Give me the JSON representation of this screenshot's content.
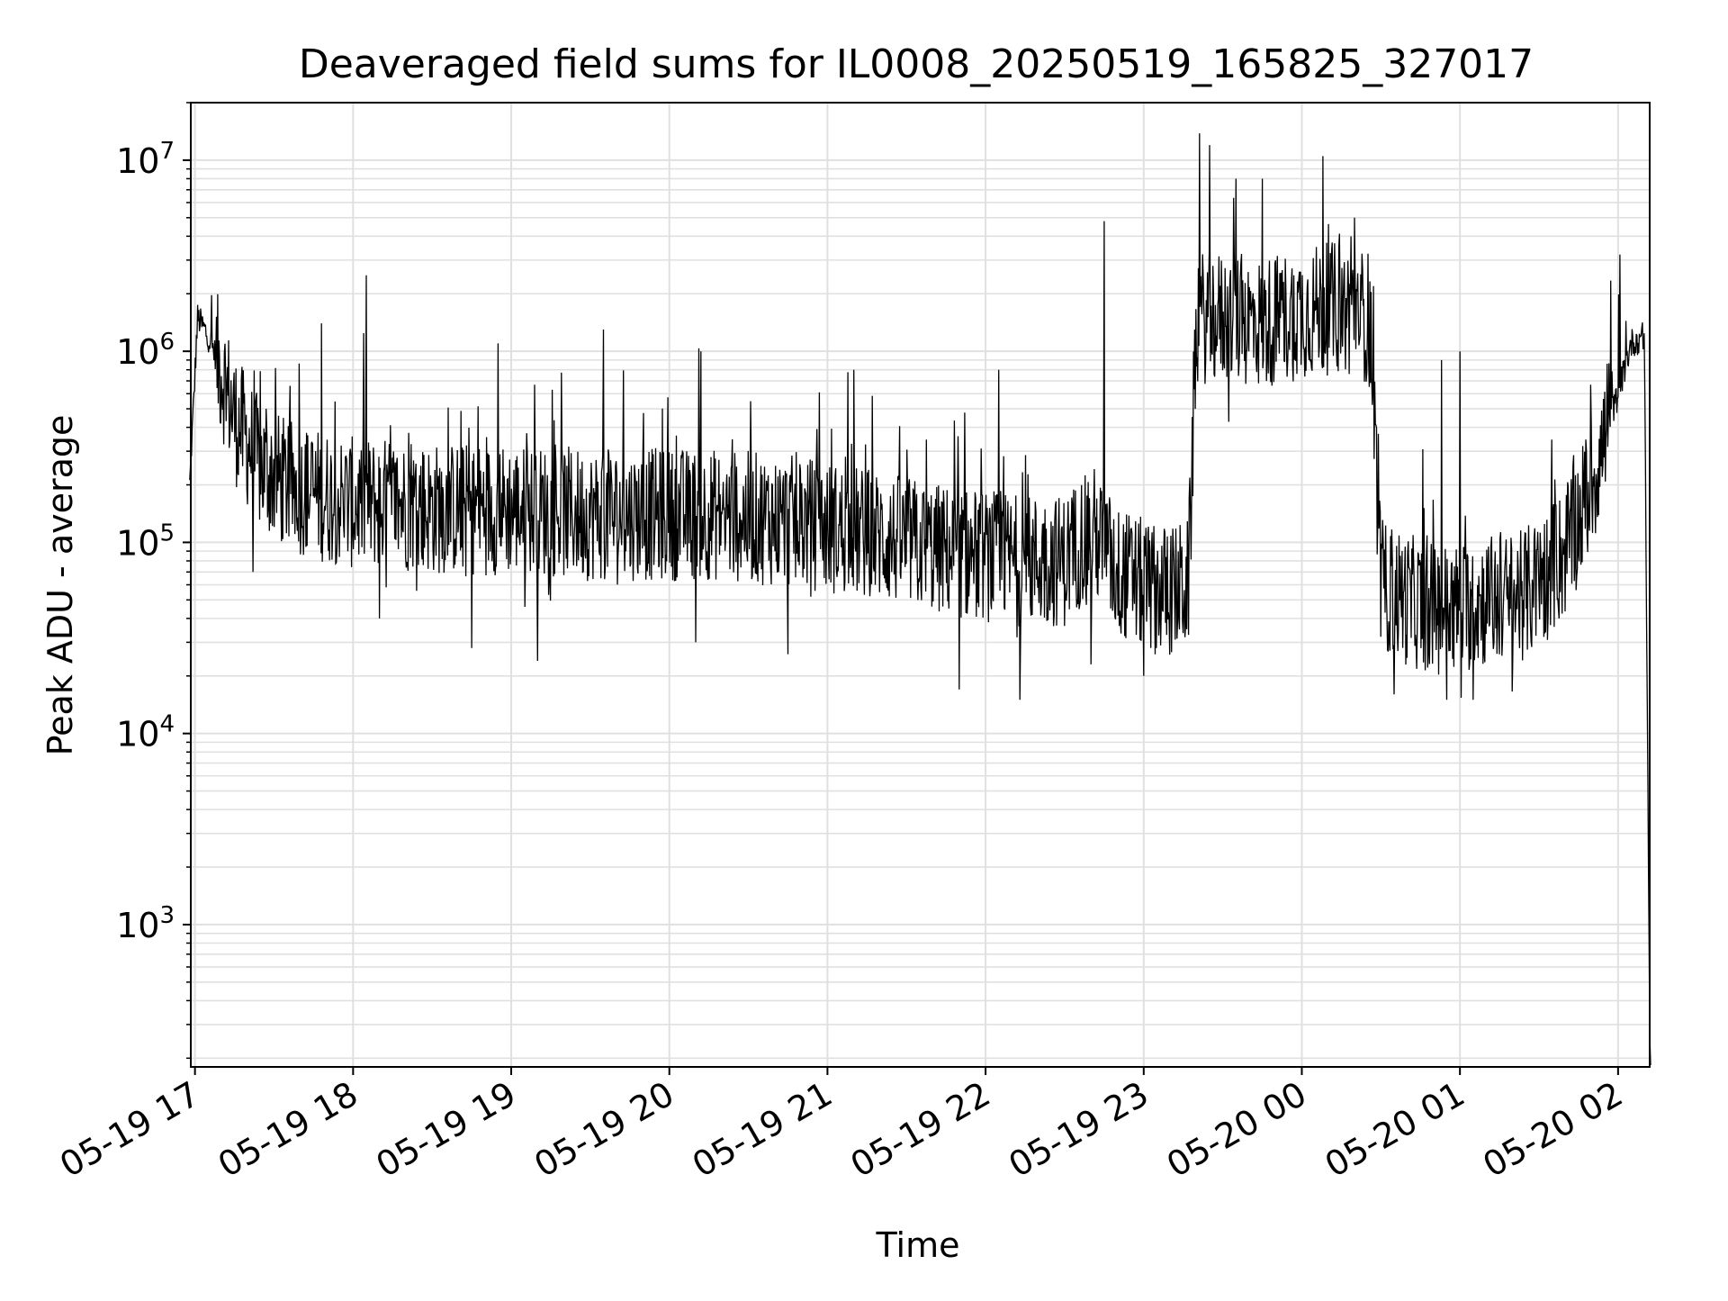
{
  "chart_data": {
    "type": "line",
    "title": "Deaveraged field sums for IL0008_20250519_165825_327017",
    "xlabel": "Time",
    "ylabel": "Peak ADU - average",
    "x_scale": "time",
    "y_scale": "log",
    "xlim": [
      "2025-05-19 16:58:25",
      "2025-05-20 02:12:00"
    ],
    "ylim": [
      180,
      20000000
    ],
    "grid": true,
    "line_color": "#000000",
    "grid_color": "#e0e0e0",
    "x_ticks": [
      {
        "time": "2025-05-19 17:00",
        "label": "05-19 17"
      },
      {
        "time": "2025-05-19 18:00",
        "label": "05-19 18"
      },
      {
        "time": "2025-05-19 19:00",
        "label": "05-19 19"
      },
      {
        "time": "2025-05-19 20:00",
        "label": "05-19 20"
      },
      {
        "time": "2025-05-19 21:00",
        "label": "05-19 21"
      },
      {
        "time": "2025-05-19 22:00",
        "label": "05-19 22"
      },
      {
        "time": "2025-05-19 23:00",
        "label": "05-19 23"
      },
      {
        "time": "2025-05-20 00:00",
        "label": "05-20 00"
      },
      {
        "time": "2025-05-20 01:00",
        "label": "05-20 01"
      },
      {
        "time": "2025-05-20 02:00",
        "label": "05-20 02"
      }
    ],
    "y_ticks": [
      {
        "value": 1000,
        "base": "10",
        "exp": "3"
      },
      {
        "value": 10000,
        "base": "10",
        "exp": "4"
      },
      {
        "value": 100000,
        "base": "10",
        "exp": "5"
      },
      {
        "value": 1000000,
        "base": "10",
        "exp": "6"
      },
      {
        "value": 10000000,
        "base": "10",
        "exp": "7"
      }
    ],
    "series": [
      {
        "values_note_omitted": true,
        "x": [
          "2025-05-19 16:58",
          "2025-05-19 17:01",
          "2025-05-19 17:05",
          "2025-05-19 17:10",
          "2025-05-19 17:15",
          "2025-05-19 17:25",
          "2025-05-19 17:35",
          "2025-05-19 17:45",
          "2025-05-19 18:00",
          "2025-05-19 18:15",
          "2025-05-19 18:30",
          "2025-05-19 18:45",
          "2025-05-19 19:00",
          "2025-05-19 19:15",
          "2025-05-19 19:30",
          "2025-05-19 19:45",
          "2025-05-19 20:00",
          "2025-05-19 20:15",
          "2025-05-19 20:30",
          "2025-05-19 20:45",
          "2025-05-19 21:00",
          "2025-05-19 21:15",
          "2025-05-19 21:30",
          "2025-05-19 21:45",
          "2025-05-19 22:00",
          "2025-05-19 22:15",
          "2025-05-19 22:30",
          "2025-05-19 22:40",
          "2025-05-19 22:50",
          "2025-05-19 23:00",
          "2025-05-19 23:10",
          "2025-05-19 23:17",
          "2025-05-19 23:20",
          "2025-05-19 23:30",
          "2025-05-19 23:45",
          "2025-05-20 00:00",
          "2025-05-20 00:15",
          "2025-05-20 00:26",
          "2025-05-20 00:30",
          "2025-05-20 00:40",
          "2025-05-20 00:50",
          "2025-05-20 01:00",
          "2025-05-20 01:10",
          "2025-05-20 01:20",
          "2025-05-20 01:30",
          "2025-05-20 01:40",
          "2025-05-20 01:50",
          "2025-05-20 02:00",
          "2025-05-20 02:05",
          "2025-05-20 02:10",
          "2025-05-20 02:12"
        ],
        "y": [
          200000,
          1500000,
          1200000,
          800000,
          450000,
          250000,
          200000,
          180000,
          160000,
          160000,
          150000,
          150000,
          150000,
          145000,
          140000,
          140000,
          140000,
          140000,
          135000,
          130000,
          120000,
          110000,
          100000,
          90000,
          85000,
          80000,
          80000,
          120000,
          70000,
          60000,
          55000,
          60000,
          1500000,
          1500000,
          1400000,
          1600000,
          1700000,
          1500000,
          60000,
          50000,
          45000,
          45000,
          50000,
          50000,
          60000,
          90000,
          200000,
          600000,
          1100000,
          1200000,
          300
        ],
        "spikes": [
          [
            "2025-05-19 17:27",
            500000
          ],
          [
            "2025-05-19 17:48",
            1400000
          ],
          [
            "2025-05-19 18:05",
            2500000
          ],
          [
            "2025-05-19 18:55",
            1100000
          ],
          [
            "2025-05-19 19:35",
            1300000
          ],
          [
            "2025-05-19 20:12",
            1000000
          ],
          [
            "2025-05-19 21:10",
            800000
          ],
          [
            "2025-05-19 21:50",
            700000
          ],
          [
            "2025-05-19 22:05",
            800000
          ],
          [
            "2025-05-19 22:45",
            4800000
          ],
          [
            "2025-05-19 23:25",
            12000000
          ],
          [
            "2025-05-19 23:35",
            8000000
          ],
          [
            "2025-05-19 23:45",
            8000000
          ],
          [
            "2025-05-20 00:08",
            10500000
          ],
          [
            "2025-05-20 00:20",
            5000000
          ],
          [
            "2025-05-20 00:53",
            900000
          ],
          [
            "2025-05-20 01:00",
            1000000
          ]
        ],
        "troughs": [
          [
            "2025-05-19 17:22",
            70000
          ],
          [
            "2025-05-19 18:10",
            40000
          ],
          [
            "2025-05-19 18:45",
            28000
          ],
          [
            "2025-05-19 19:10",
            24000
          ],
          [
            "2025-05-19 20:10",
            30000
          ],
          [
            "2025-05-19 20:45",
            26000
          ],
          [
            "2025-05-19 21:50",
            17000
          ],
          [
            "2025-05-19 22:13",
            15000
          ],
          [
            "2025-05-19 22:40",
            23000
          ],
          [
            "2025-05-19 23:00",
            20000
          ],
          [
            "2025-05-20 00:35",
            16000
          ],
          [
            "2025-05-20 00:55",
            15000
          ],
          [
            "2025-05-20 01:05",
            15000
          ],
          [
            "2025-05-20 01:20",
            22000
          ]
        ]
      }
    ]
  }
}
